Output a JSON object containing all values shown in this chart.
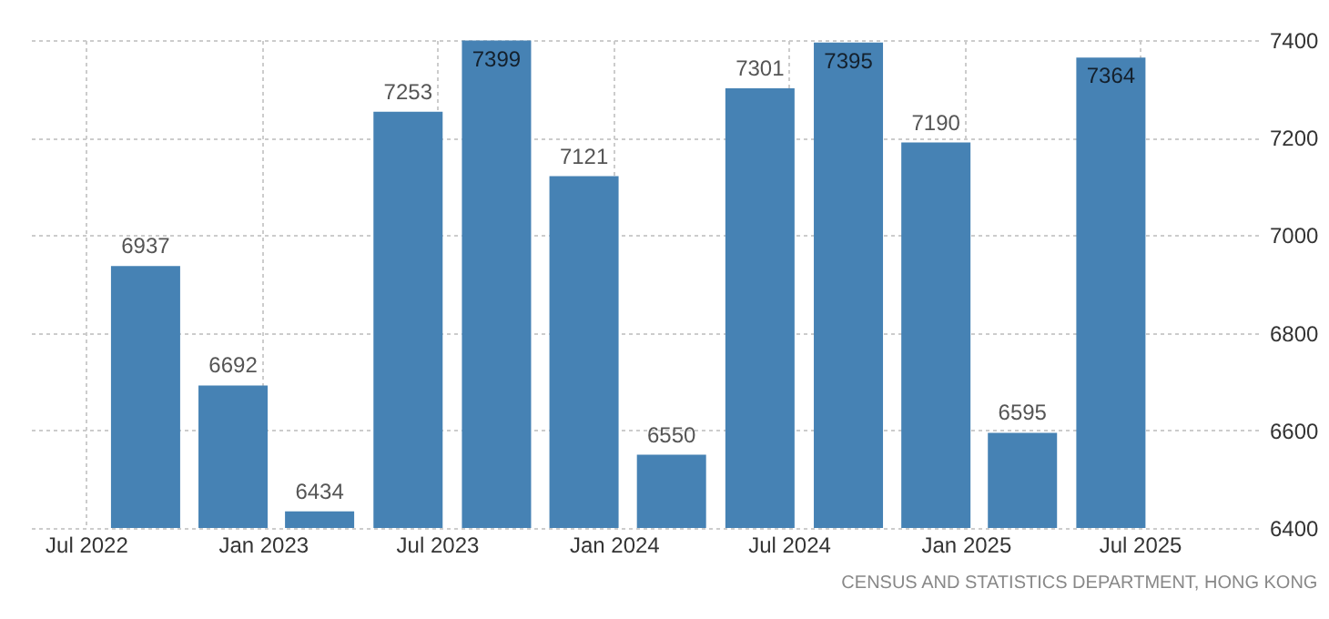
{
  "chart_data": {
    "type": "bar",
    "x": [
      "2022-09",
      "2022-12",
      "2023-03",
      "2023-06",
      "2023-09",
      "2023-12",
      "2024-03",
      "2024-06",
      "2024-09",
      "2024-12",
      "2025-03",
      "2025-06"
    ],
    "values": [
      6937,
      6692,
      6434,
      7253,
      7399,
      7121,
      6550,
      7301,
      7395,
      7190,
      6595,
      7364
    ],
    "color": "#4682b4",
    "xlim": [
      "2022-05",
      "2025-11"
    ],
    "xticks": [
      {
        "value": "2022-07",
        "label": "Jul 2022"
      },
      {
        "value": "2023-01",
        "label": "Jan 2023"
      },
      {
        "value": "2023-07",
        "label": "Jul 2023"
      },
      {
        "value": "2024-01",
        "label": "Jan 2024"
      },
      {
        "value": "2024-07",
        "label": "Jul 2024"
      },
      {
        "value": "2025-01",
        "label": "Jan 2025"
      },
      {
        "value": "2025-07",
        "label": "Jul 2025"
      }
    ],
    "ylim": [
      6400,
      7400
    ],
    "yticks": [
      6400,
      6600,
      6800,
      7000,
      7200,
      7400
    ],
    "grid": true,
    "data_labels": true,
    "annotations": [
      "CENSUS AND STATISTICS DEPARTMENT, HONG KONG"
    ]
  }
}
